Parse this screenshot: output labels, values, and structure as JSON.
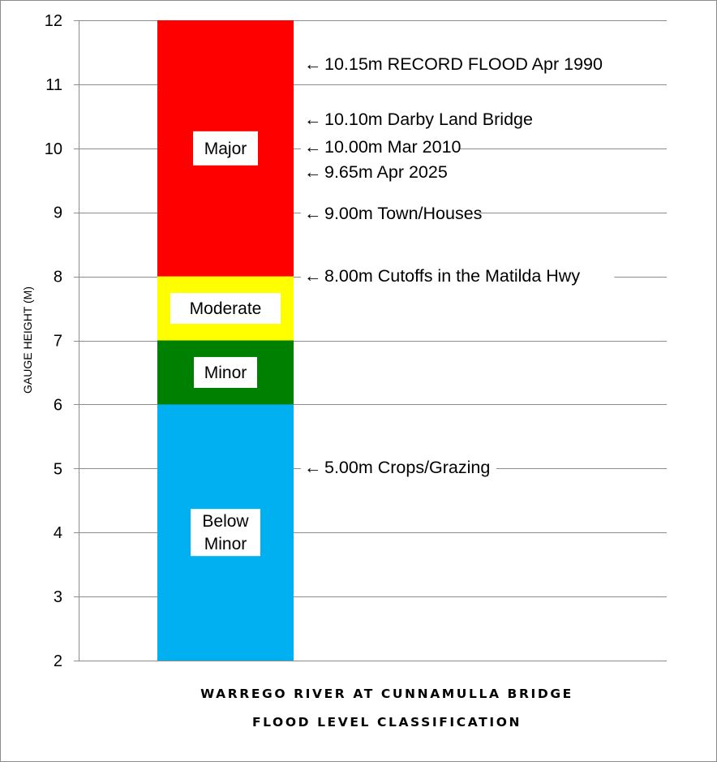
{
  "chart_data": {
    "type": "bar",
    "title_lines": [
      "WARREGO RIVER AT CUNNAMULLA BRIDGE",
      "FLOOD LEVEL CLASSIFICATION"
    ],
    "ylabel": "GAUGE HEIGHT (M)",
    "ylim": [
      2,
      12
    ],
    "yticks": [
      2,
      3,
      4,
      5,
      6,
      7,
      8,
      9,
      10,
      11,
      12
    ],
    "grid": true,
    "bands": [
      {
        "label_lines": [
          "Below",
          "Minor"
        ],
        "from": 2,
        "to": 6,
        "color": "#00b0f0"
      },
      {
        "label_lines": [
          "Minor"
        ],
        "from": 6,
        "to": 7,
        "color": "#008000"
      },
      {
        "label_lines": [
          "Moderate"
        ],
        "from": 7,
        "to": 8,
        "color": "#ffff00"
      },
      {
        "label_lines": [
          "Major"
        ],
        "from": 8,
        "to": 12,
        "color": "#ff0000"
      }
    ],
    "annotations": [
      {
        "value": 10.15,
        "text": "10.15m RECORD FLOOD Apr 1990"
      },
      {
        "value": 10.1,
        "text": "10.10m Darby Land Bridge"
      },
      {
        "value": 10.0,
        "text": "10.00m Mar 2010"
      },
      {
        "value": 9.65,
        "text": "9.65m Apr 2025"
      },
      {
        "value": 9.0,
        "text": "9.00m Town/Houses"
      },
      {
        "value": 8.0,
        "text": "8.00m Cutoffs in the Matilda Hwy"
      },
      {
        "value": 5.0,
        "text": "5.00m Crops/Grazing"
      }
    ],
    "arrow_glyph": "←"
  }
}
